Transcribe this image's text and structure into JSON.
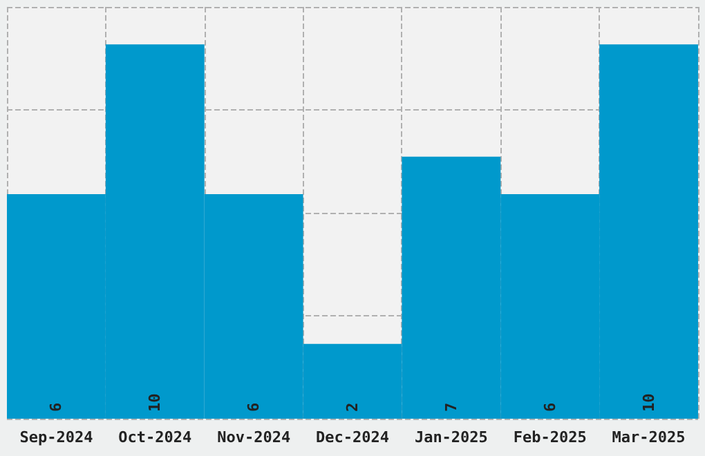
{
  "chart_data": {
    "type": "bar",
    "categories": [
      "Sep-2024",
      "Oct-2024",
      "Nov-2024",
      "Dec-2024",
      "Jan-2025",
      "Feb-2025",
      "Mar-2025"
    ],
    "values": [
      6,
      10,
      6,
      2,
      7,
      6,
      10
    ],
    "color": "#0099cc",
    "data_labels": true,
    "grid": true,
    "ylim": [
      0,
      11
    ],
    "yticks": [
      {
        "value": 0,
        "label": null
      },
      {
        "value": 2.75,
        "label": null
      },
      {
        "value": 5.5,
        "label": null
      },
      {
        "value": 8.25,
        "label": null
      },
      {
        "value": 11,
        "label": null
      }
    ],
    "tick_labels": "x"
  }
}
